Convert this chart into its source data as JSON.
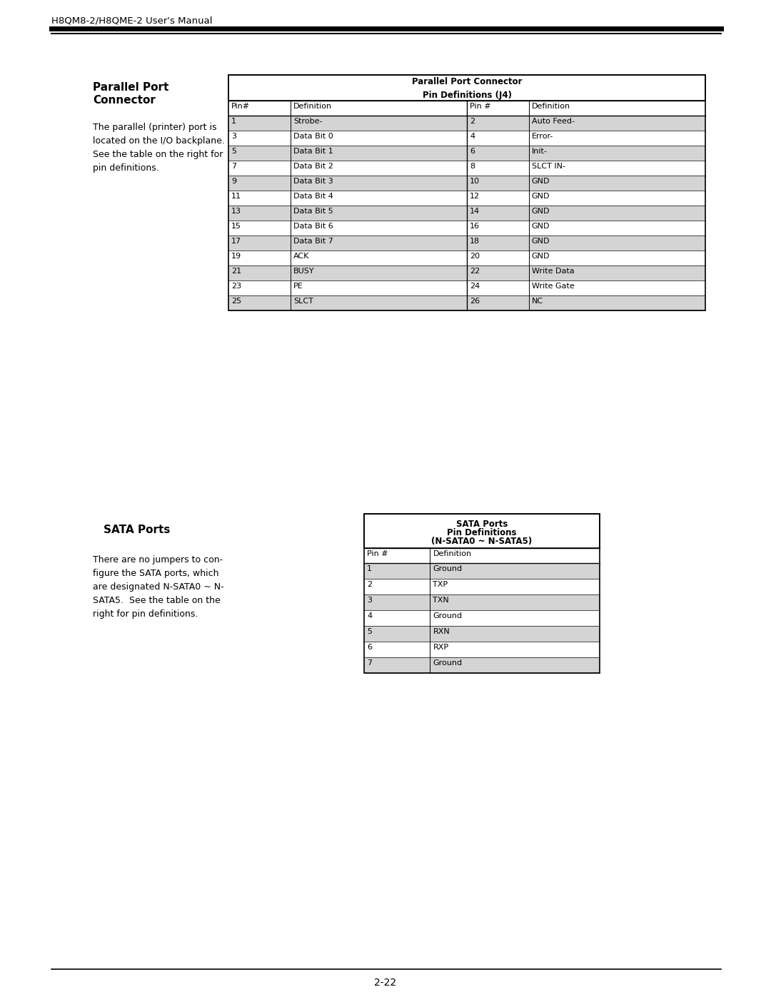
{
  "page_title": "H8QM8-2/H8QME-2 User's Manual",
  "page_number": "2-22",
  "background_color": "#ffffff",
  "section1": {
    "title_line1": "Parallel Port",
    "title_line2": "Connector",
    "body_lines": [
      "The parallel (printer) port is",
      "located on the I/O backplane.",
      "See the table on the right for",
      "pin definitions."
    ],
    "table_title_line1": "Parallel Port Connector",
    "table_title_line2": "Pin Definitions (J4)",
    "col_headers": [
      "Pin#",
      "Definition",
      "Pin #",
      "Definition"
    ],
    "rows": [
      [
        "1",
        "Strobe-",
        "2",
        "Auto Feed-",
        true
      ],
      [
        "3",
        "Data Bit 0",
        "4",
        "Error-",
        false
      ],
      [
        "5",
        "Data Bit 1",
        "6",
        "Init-",
        true
      ],
      [
        "7",
        "Data Bit 2",
        "8",
        "SLCT IN-",
        false
      ],
      [
        "9",
        "Data Bit 3",
        "10",
        "GND",
        true
      ],
      [
        "11",
        "Data Bit 4",
        "12",
        "GND",
        false
      ],
      [
        "13",
        "Data Bit 5",
        "14",
        "GND",
        true
      ],
      [
        "15",
        "Data Bit 6",
        "16",
        "GND",
        false
      ],
      [
        "17",
        "Data Bit 7",
        "18",
        "GND",
        true
      ],
      [
        "19",
        "ACK",
        "20",
        "GND",
        false
      ],
      [
        "21",
        "BUSY",
        "22",
        "Write Data",
        true
      ],
      [
        "23",
        "PE",
        "24",
        "Write Gate",
        false
      ],
      [
        "25",
        "SLCT",
        "26",
        "NC",
        true
      ]
    ],
    "shaded_color": "#d4d4d4"
  },
  "section2": {
    "title": "SATA Ports",
    "body_lines": [
      "There are no jumpers to con-",
      "figure the SATA ports, which",
      "are designated N-SATA0 ~ N-",
      "SATA5.  See the table on the",
      "right for pin definitions."
    ],
    "table_title_line1": "SATA Ports",
    "table_title_line2": "Pin Definitions",
    "table_title_line3": "(N-SATA0 ~ N-SATA5)",
    "col_headers": [
      "Pin #",
      "Definition"
    ],
    "rows": [
      [
        "1",
        "Ground",
        true
      ],
      [
        "2",
        "TXP",
        false
      ],
      [
        "3",
        "TXN",
        true
      ],
      [
        "4",
        "Ground",
        false
      ],
      [
        "5",
        "RXN",
        true
      ],
      [
        "6",
        "RXP",
        false
      ],
      [
        "7",
        "Ground",
        true
      ]
    ],
    "shaded_color": "#d4d4d4"
  }
}
